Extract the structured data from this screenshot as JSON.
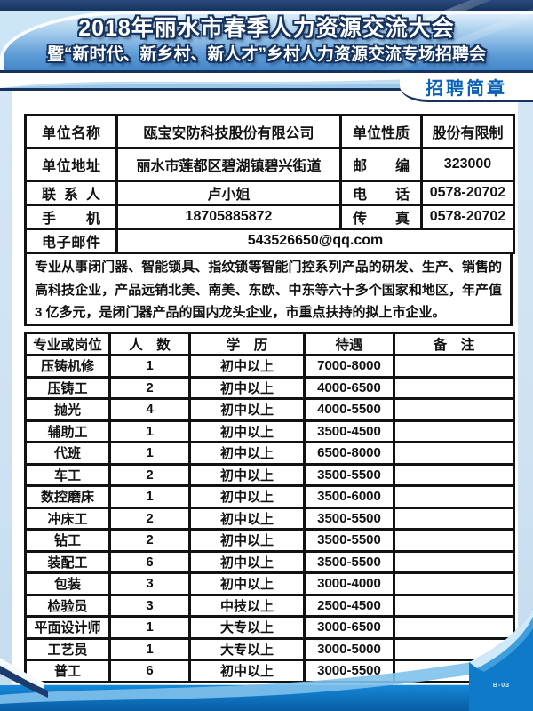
{
  "header": {
    "title_line1": "2018年丽水市春季人力资源交流大会",
    "title_line2": "暨“新时代、新乡村、新人才”乡村人力资源交流专场招聘会",
    "badge": "招聘简章"
  },
  "company": {
    "name_label": "单位名称",
    "name_value": "瓯宝安防科技股份有限公司",
    "nature_label": "单位性质",
    "nature_value": "股份有限制",
    "address_label": "单位地址",
    "address_value": "丽水市莲都区碧湖镇碧兴街道",
    "zip_label": "邮编",
    "zip_value": "323000",
    "contact_label": "联系人",
    "contact_value": "卢小姐",
    "phone_label": "电话",
    "phone_value": "0578-20702",
    "mobile_label": "手机",
    "mobile_value": "18705885872",
    "fax_label": "传真",
    "fax_value": "0578-20702",
    "email_label": "电子邮件",
    "email_value": "543526650@qq.com",
    "description": "专业从事闭门器、智能锁具、指纹锁等智能门控系列产品的研发、生产、销售的高科技企业，产品远销北美、南美、东欧、中东等六十多个国家和地区，年产值 3 亿多元，是闭门器产品的国内龙头企业，市重点扶持的拟上市企业。"
  },
  "jobs": {
    "headers": [
      "专业或岗位",
      "人　数",
      "学　历",
      "待遇",
      "备　注"
    ],
    "rows": [
      {
        "position": "压铸机修",
        "count": "1",
        "education": "初中以上",
        "salary": "7000-8000",
        "note": ""
      },
      {
        "position": "压铸工",
        "count": "2",
        "education": "初中以上",
        "salary": "4000-6500",
        "note": ""
      },
      {
        "position": "抛光",
        "count": "4",
        "education": "初中以上",
        "salary": "4000-5500",
        "note": ""
      },
      {
        "position": "辅助工",
        "count": "1",
        "education": "初中以上",
        "salary": "3500-4500",
        "note": ""
      },
      {
        "position": "代班",
        "count": "1",
        "education": "初中以上",
        "salary": "6500-8000",
        "note": ""
      },
      {
        "position": "车工",
        "count": "2",
        "education": "初中以上",
        "salary": "3500-5500",
        "note": ""
      },
      {
        "position": "数控磨床",
        "count": "1",
        "education": "初中以上",
        "salary": "3500-6000",
        "note": ""
      },
      {
        "position": "冲床工",
        "count": "2",
        "education": "初中以上",
        "salary": "3500-5500",
        "note": ""
      },
      {
        "position": "钻工",
        "count": "2",
        "education": "初中以上",
        "salary": "3500-5500",
        "note": ""
      },
      {
        "position": "装配工",
        "count": "6",
        "education": "初中以上",
        "salary": "3500-5500",
        "note": ""
      },
      {
        "position": "包装",
        "count": "3",
        "education": "初中以上",
        "salary": "3000-4000",
        "note": ""
      },
      {
        "position": "检验员",
        "count": "3",
        "education": "中技以上",
        "salary": "2500-4500",
        "note": ""
      },
      {
        "position": "平面设计师",
        "count": "1",
        "education": "大专以上",
        "salary": "3000-6500",
        "note": ""
      },
      {
        "position": "工艺员",
        "count": "1",
        "education": "大专以上",
        "salary": "3000-5000",
        "note": ""
      },
      {
        "position": "普工",
        "count": "6",
        "education": "初中以上",
        "salary": "3000-5500",
        "note": ""
      }
    ]
  },
  "footer": {
    "page_code": "B-03"
  },
  "colors": {
    "navy": "#16335f",
    "badge_text": "#0a62b8",
    "table_border": "#121212",
    "body_blue": "#1080d2",
    "light_blue": "#cfe3f3"
  }
}
